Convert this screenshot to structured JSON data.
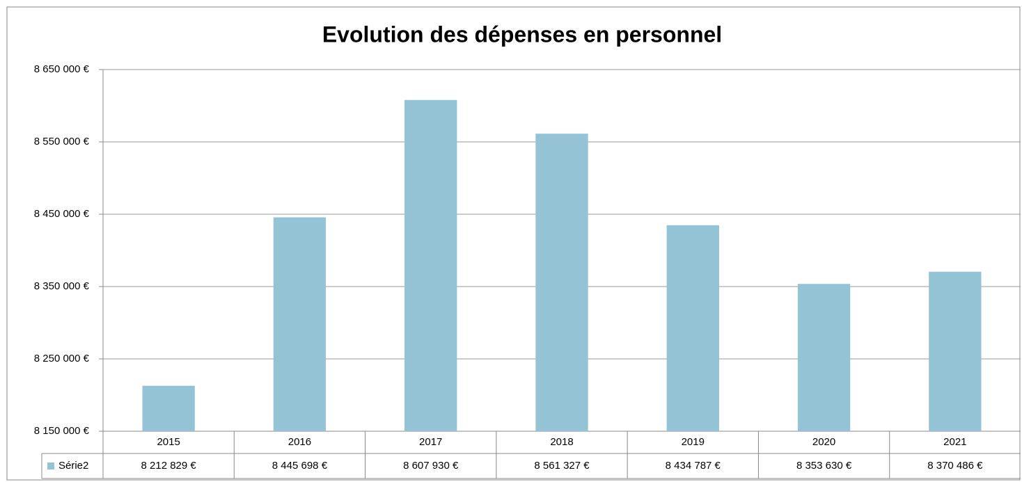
{
  "chart_data": {
    "type": "bar",
    "title": "Evolution des dépenses en personnel",
    "categories": [
      "2015",
      "2016",
      "2017",
      "2018",
      "2019",
      "2020",
      "2021"
    ],
    "series": [
      {
        "name": "Série2",
        "color": "#93c3d4",
        "values": [
          8212829,
          8445698,
          8607930,
          8561327,
          8434787,
          8353630,
          8370486
        ],
        "value_labels": [
          "8 212 829 €",
          "8 445 698 €",
          "8 607 930 €",
          "8 561 327 €",
          "8 434 787 €",
          "8 353 630 €",
          "8 370 486 €"
        ]
      }
    ],
    "ylim": [
      8150000,
      8650000
    ],
    "yticks": [
      {
        "value": 8150000,
        "label": "8 150 000 €"
      },
      {
        "value": 8250000,
        "label": "8 250 000 €"
      },
      {
        "value": 8350000,
        "label": "8 350 000 €"
      },
      {
        "value": 8450000,
        "label": "8 450 000 €"
      },
      {
        "value": 8550000,
        "label": "8 550 000 €"
      },
      {
        "value": 8650000,
        "label": "8 650 000 €"
      }
    ],
    "grid": true
  }
}
